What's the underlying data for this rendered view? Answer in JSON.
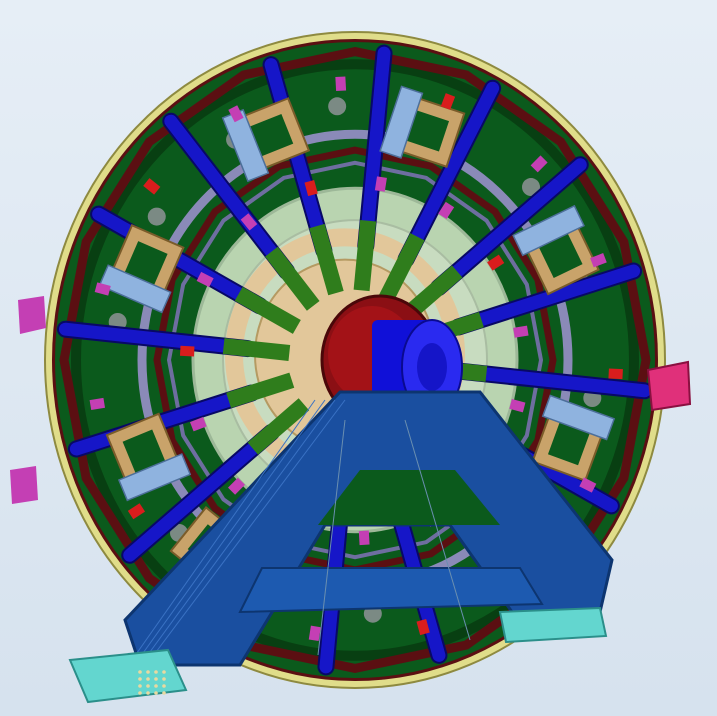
{
  "scene": {
    "colors": {
      "background": "#dfe8f2",
      "disc": "#0b5a1c",
      "disc_dark": "#083f12",
      "rim": "#e0dd8a",
      "spoke_outer": "#1616c8",
      "spoke_inner": "#2f7d1c",
      "brace": "#5b0f12",
      "ring": "#8a8ab8",
      "inner_plate": "#b9d4b0",
      "hub_plate": "#e2c79a",
      "hub_red": "#8b0f14",
      "hub_blue": "#1010d8",
      "stand": "#1a4fa0",
      "stand_edge": "#0d3570",
      "foot": "#63d6cf",
      "bracket": "#c9a36a",
      "bracket_blue": "#8fb3df",
      "accent_magenta": "#c43fb4",
      "accent_pink": "#e0307a",
      "accent_red": "#d91d1d",
      "hole": "#7b8a84"
    },
    "elements": [
      "outer-rim-icon",
      "support-disc-icon",
      "spoke-icon",
      "hub-icon",
      "a-frame-stand-icon",
      "mounting-bracket-icon",
      "foot-pad-icon"
    ]
  }
}
